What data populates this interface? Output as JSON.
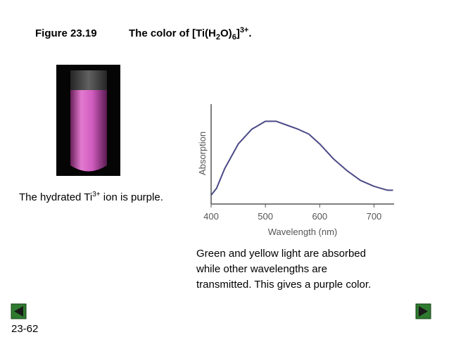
{
  "header": {
    "figure": "Figure 23.19",
    "title_parts": [
      "The color of [Ti(H",
      "2",
      "O)",
      "6",
      "]",
      "3+",
      "."
    ]
  },
  "photo_caption_parts": [
    "The hydrated Ti",
    "3+",
    " ion is purple."
  ],
  "caption_lines": [
    "Green and yellow light are absorbed",
    "while other wavelengths are",
    "transmitted. This gives a purple color."
  ],
  "slide_number": "23-62",
  "chart_data": {
    "type": "line",
    "x_label": "Wavelength (nm)",
    "y_label": "Absorption",
    "x": [
      400,
      410,
      425,
      450,
      475,
      500,
      520,
      540,
      560,
      580,
      600,
      625,
      650,
      675,
      700,
      725,
      735
    ],
    "values": [
      0.09,
      0.16,
      0.36,
      0.61,
      0.76,
      0.84,
      0.84,
      0.8,
      0.76,
      0.71,
      0.61,
      0.46,
      0.34,
      0.24,
      0.18,
      0.14,
      0.14
    ],
    "color": "#4b4a86",
    "xlim": [
      400,
      737
    ],
    "xticks": [
      400,
      500,
      600,
      700
    ],
    "ylim": [
      0,
      1
    ]
  }
}
